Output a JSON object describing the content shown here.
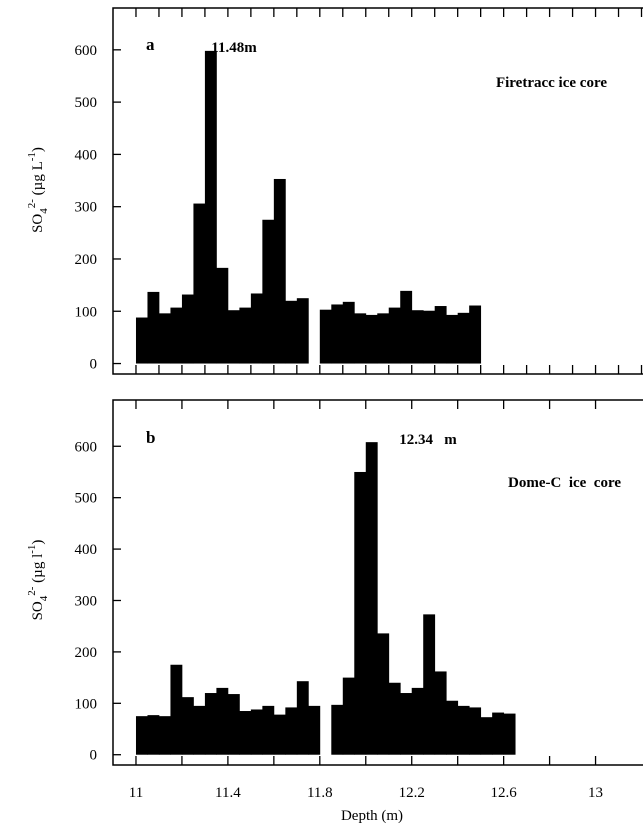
{
  "chart_data": [
    {
      "type": "bar",
      "panel_label": "a",
      "annotation": "Firetracc ice core",
      "peak_label": "11.48m",
      "peak_x": 11.48,
      "ylabel": {
        "main": "SO",
        "sub": "4",
        "sup": "2-",
        "rest": " (µg L",
        "rest_sup": "-1",
        "close": ")"
      },
      "xlabel": "",
      "xlim": [
        10.9,
        13.25
      ],
      "ylim": [
        -20,
        680
      ],
      "yticks": [
        0,
        100,
        200,
        300,
        400,
        500,
        600
      ],
      "ytick_labels": [
        "0",
        "100",
        "200",
        "300",
        "400",
        "500",
        "600"
      ],
      "xticks": [
        11,
        11.1,
        11.2,
        11.3,
        11.4,
        11.5,
        11.6,
        11.7,
        11.8,
        11.9,
        12,
        12.1,
        12.2,
        12.3,
        12.4,
        12.5,
        12.6,
        12.7,
        12.8,
        12.9,
        13,
        13.1,
        13.2
      ],
      "bar_width": 0.05,
      "bars": [
        {
          "x": 11.0,
          "value": 88
        },
        {
          "x": 11.05,
          "value": 137
        },
        {
          "x": 11.1,
          "value": 96
        },
        {
          "x": 11.15,
          "value": 107
        },
        {
          "x": 11.2,
          "value": 132
        },
        {
          "x": 11.25,
          "value": 306
        },
        {
          "x": 11.3,
          "value": 598
        },
        {
          "x": 11.35,
          "value": 183
        },
        {
          "x": 11.4,
          "value": 102
        },
        {
          "x": 11.45,
          "value": 107
        },
        {
          "x": 11.5,
          "value": 134
        },
        {
          "x": 11.55,
          "value": 275
        },
        {
          "x": 11.6,
          "value": 353
        },
        {
          "x": 11.65,
          "value": 120
        },
        {
          "x": 11.7,
          "value": 125
        },
        {
          "x": 11.8,
          "value": 103
        },
        {
          "x": 11.85,
          "value": 113
        },
        {
          "x": 11.9,
          "value": 118
        },
        {
          "x": 11.95,
          "value": 96
        },
        {
          "x": 12.0,
          "value": 93
        },
        {
          "x": 12.05,
          "value": 96
        },
        {
          "x": 12.1,
          "value": 107
        },
        {
          "x": 12.15,
          "value": 139
        },
        {
          "x": 12.2,
          "value": 102
        },
        {
          "x": 12.25,
          "value": 101
        },
        {
          "x": 12.3,
          "value": 110
        },
        {
          "x": 12.35,
          "value": 93
        },
        {
          "x": 12.4,
          "value": 97
        },
        {
          "x": 12.45,
          "value": 111
        }
      ]
    },
    {
      "type": "bar",
      "panel_label": "b",
      "annotation": "Dome-C  ice  core",
      "peak_label": "12.34   m",
      "peak_x": 12.34,
      "ylabel": {
        "main": "SO",
        "sub": "4",
        "sup": "2-",
        "rest": " (µg l",
        "rest_sup": "-1",
        "close": ")"
      },
      "xlabel": "Depth (m)",
      "xlim": [
        10.9,
        13.25
      ],
      "ylim": [
        -20,
        690
      ],
      "yticks": [
        0,
        100,
        200,
        300,
        400,
        500,
        600
      ],
      "ytick_labels": [
        "0",
        "100",
        "200",
        "300",
        "400",
        "500",
        "600"
      ],
      "xticks": [
        11,
        11.2,
        11.4,
        11.6,
        11.8,
        12,
        12.2,
        12.4,
        12.6,
        12.8,
        13
      ],
      "xtick_labels": [
        "11",
        "",
        "11.4",
        "",
        "11.8",
        "",
        "12.2",
        "",
        "12.6",
        "",
        "13"
      ],
      "bar_width": 0.05,
      "bars": [
        {
          "x": 11.0,
          "value": 75
        },
        {
          "x": 11.05,
          "value": 77
        },
        {
          "x": 11.1,
          "value": 75
        },
        {
          "x": 11.15,
          "value": 175
        },
        {
          "x": 11.2,
          "value": 112
        },
        {
          "x": 11.25,
          "value": 95
        },
        {
          "x": 11.3,
          "value": 120
        },
        {
          "x": 11.35,
          "value": 130
        },
        {
          "x": 11.4,
          "value": 118
        },
        {
          "x": 11.45,
          "value": 85
        },
        {
          "x": 11.5,
          "value": 88
        },
        {
          "x": 11.55,
          "value": 95
        },
        {
          "x": 11.6,
          "value": 78
        },
        {
          "x": 11.65,
          "value": 92
        },
        {
          "x": 11.7,
          "value": 143
        },
        {
          "x": 11.75,
          "value": 95
        },
        {
          "x": 11.85,
          "value": 97
        },
        {
          "x": 11.9,
          "value": 150
        },
        {
          "x": 11.95,
          "value": 550
        },
        {
          "x": 12.0,
          "value": 608
        },
        {
          "x": 12.05,
          "value": 236
        },
        {
          "x": 12.1,
          "value": 140
        },
        {
          "x": 12.15,
          "value": 120
        },
        {
          "x": 12.2,
          "value": 130
        },
        {
          "x": 12.25,
          "value": 273
        },
        {
          "x": 12.3,
          "value": 162
        },
        {
          "x": 12.35,
          "value": 105
        },
        {
          "x": 12.4,
          "value": 95
        },
        {
          "x": 12.45,
          "value": 92
        },
        {
          "x": 12.5,
          "value": 73
        },
        {
          "x": 12.55,
          "value": 82
        },
        {
          "x": 12.6,
          "value": 80
        }
      ]
    }
  ]
}
